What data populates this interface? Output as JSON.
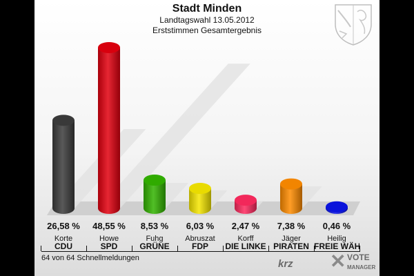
{
  "header": {
    "title": "Stadt Minden",
    "subtitle1": "Landtagswahl 13.05.2012",
    "subtitle2": "Erststimmen Gesamtergebnis"
  },
  "chart_data": {
    "type": "bar",
    "categories": [
      "CDU",
      "SPD",
      "GRÜNE",
      "FDP",
      "DIE LINKE",
      "PIRATEN",
      "FREIE WÄHLER"
    ],
    "candidates": [
      "Korte",
      "Howe",
      "Fuhg",
      "Abruszat",
      "Korff",
      "Jäger",
      "Heilig"
    ],
    "values": [
      26.58,
      48.55,
      8.53,
      6.03,
      2.47,
      7.38,
      0.46
    ],
    "value_labels": [
      "26,58 %",
      "48,55 %",
      "8,53 %",
      "6,03 %",
      "2,47 %",
      "7,38 %",
      "0,46 %"
    ],
    "colors": [
      "#3c3c3c",
      "#e3000f",
      "#32b400",
      "#f5e600",
      "#ff2a5f",
      "#ff8c00",
      "#0a14e6"
    ],
    "ylim": [
      0,
      50
    ],
    "grid": false,
    "legend": "none"
  },
  "footer": {
    "status": "64 von 64 Schnellmeldungen",
    "brand_krz": "krz",
    "brand_vote": "VOTE",
    "brand_manager": "MANAGER"
  }
}
